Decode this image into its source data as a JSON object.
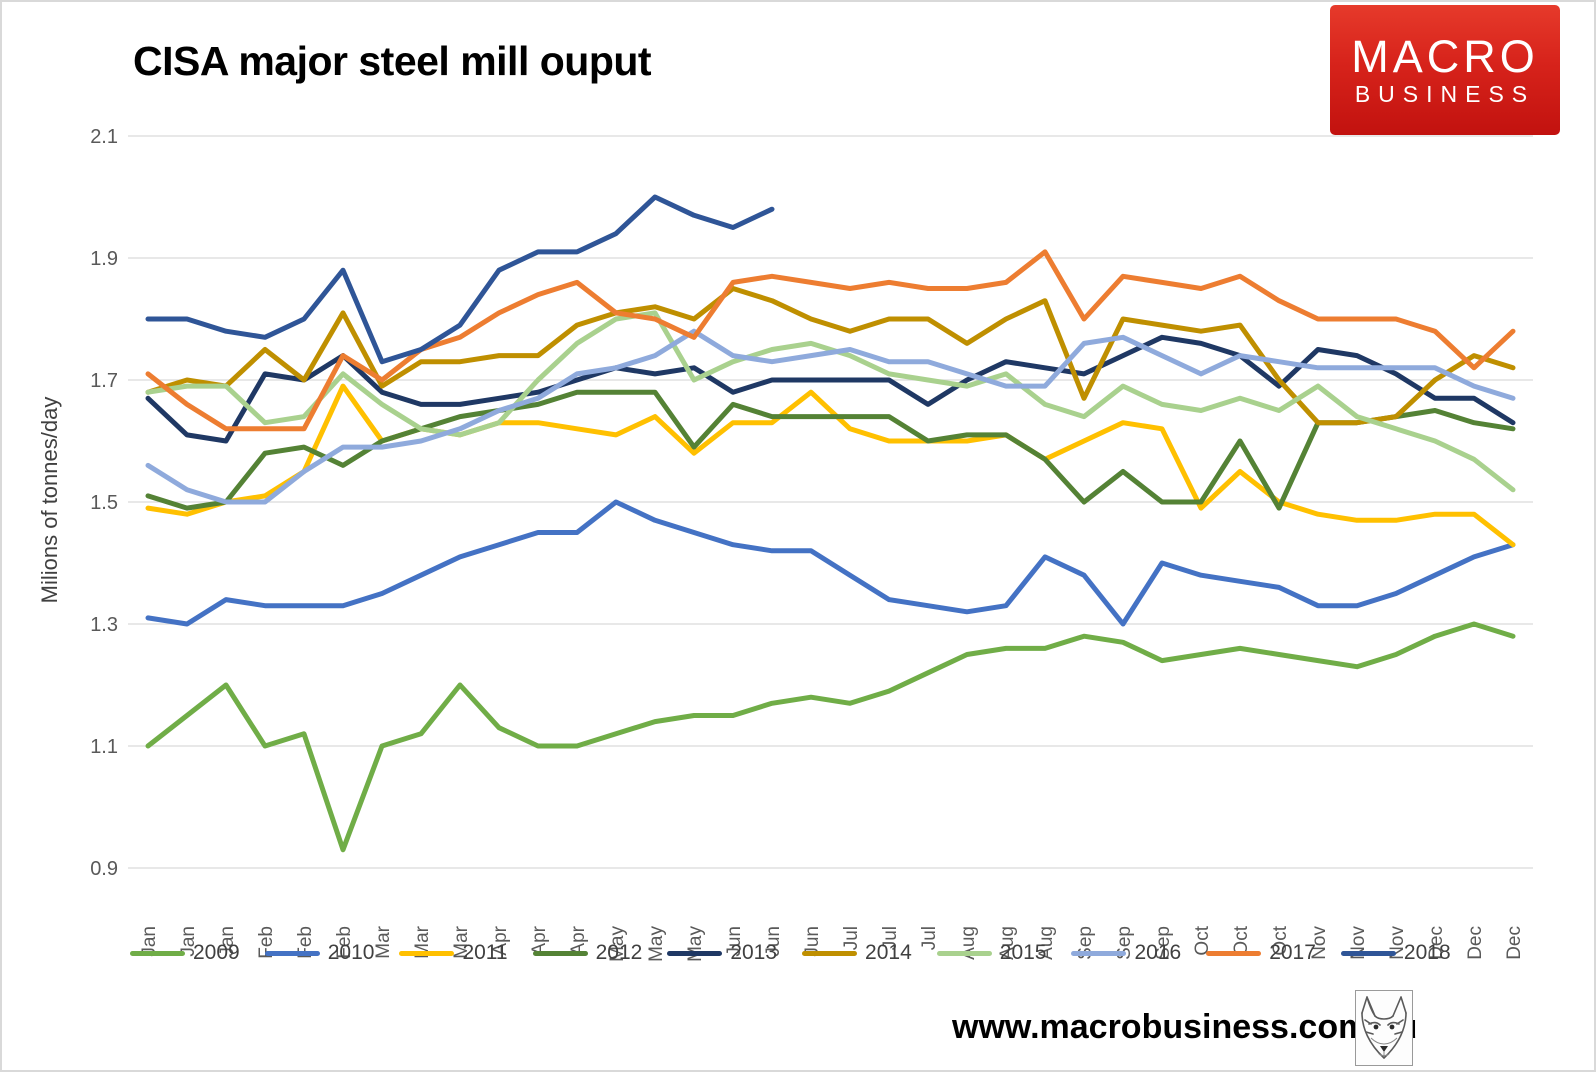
{
  "header": {
    "title": "CISA major steel mill ouput"
  },
  "logo": {
    "line1": "MACRO",
    "line2": "BUSINESS",
    "bg_color": "#d7231b",
    "text_color": "#ffffff"
  },
  "footer": {
    "website": "www.macrobusiness.com.au",
    "wolf_icon": "fox-sketch"
  },
  "chart_data": {
    "type": "line",
    "title": "CISA major steel mill ouput",
    "xlabel": "",
    "ylabel": "Milions of tonnes/day",
    "ylim": [
      0.9,
      2.1
    ],
    "yticks": [
      2.1,
      1.9,
      1.7,
      1.5,
      1.3,
      1.1,
      0.9
    ],
    "grid": true,
    "legend_position": "bottom",
    "gridline_color": "#d9d9d9",
    "tick_label_color": "#595959",
    "categories": [
      "Jan",
      "Jan",
      "Jan",
      "Feb",
      "Feb",
      "Feb",
      "Mar",
      "Mar",
      "Mar",
      "Apr",
      "Apr",
      "Apr",
      "May",
      "May",
      "May",
      "Jun",
      "Jun",
      "Jun",
      "Jul",
      "Jul",
      "Jul",
      "Aug",
      "Aug",
      "Aug",
      "Sep",
      "Sep",
      "Sep",
      "Oct",
      "Oct",
      "Oct",
      "Nov",
      "Nov",
      "Nov",
      "Dec",
      "Dec",
      "Dec"
    ],
    "series": [
      {
        "name": "2009",
        "color": "#70AD47",
        "values": [
          1.1,
          1.15,
          1.2,
          1.1,
          1.12,
          0.93,
          1.1,
          1.12,
          1.2,
          1.13,
          1.1,
          1.1,
          1.12,
          1.14,
          1.15,
          1.15,
          1.17,
          1.18,
          1.17,
          1.19,
          1.22,
          1.25,
          1.26,
          1.26,
          1.28,
          1.27,
          1.24,
          1.25,
          1.26,
          1.25,
          1.24,
          1.23,
          1.25,
          1.28,
          1.3,
          1.28
        ]
      },
      {
        "name": "2010",
        "color": "#4472C4",
        "values": [
          1.31,
          1.3,
          1.34,
          1.33,
          1.33,
          1.33,
          1.35,
          1.38,
          1.41,
          1.43,
          1.45,
          1.45,
          1.5,
          1.47,
          1.45,
          1.43,
          1.42,
          1.42,
          1.38,
          1.34,
          1.33,
          1.32,
          1.33,
          1.41,
          1.38,
          1.3,
          1.4,
          1.38,
          1.37,
          1.36,
          1.33,
          1.33,
          1.35,
          1.38,
          1.41,
          1.43
        ]
      },
      {
        "name": "2011",
        "color": "#FFC000",
        "values": [
          1.49,
          1.48,
          1.5,
          1.51,
          1.55,
          1.69,
          1.6,
          1.62,
          1.61,
          1.63,
          1.63,
          1.62,
          1.61,
          1.64,
          1.58,
          1.63,
          1.63,
          1.68,
          1.62,
          1.6,
          1.6,
          1.6,
          1.61,
          1.57,
          1.6,
          1.63,
          1.62,
          1.49,
          1.55,
          1.5,
          1.48,
          1.47,
          1.47,
          1.48,
          1.48,
          1.43
        ]
      },
      {
        "name": "2012",
        "color": "#548235",
        "values": [
          1.51,
          1.49,
          1.5,
          1.58,
          1.59,
          1.56,
          1.6,
          1.62,
          1.64,
          1.65,
          1.66,
          1.68,
          1.68,
          1.68,
          1.59,
          1.66,
          1.64,
          1.64,
          1.64,
          1.64,
          1.6,
          1.61,
          1.61,
          1.57,
          1.5,
          1.55,
          1.5,
          1.5,
          1.6,
          1.49,
          1.63,
          1.63,
          1.64,
          1.65,
          1.63,
          1.62
        ]
      },
      {
        "name": "2013",
        "color": "#1F3864",
        "values": [
          1.67,
          1.61,
          1.6,
          1.71,
          1.7,
          1.74,
          1.68,
          1.66,
          1.66,
          1.67,
          1.68,
          1.7,
          1.72,
          1.71,
          1.72,
          1.68,
          1.7,
          1.7,
          1.7,
          1.7,
          1.66,
          1.7,
          1.73,
          1.72,
          1.71,
          1.74,
          1.77,
          1.76,
          1.74,
          1.69,
          1.75,
          1.74,
          1.71,
          1.67,
          1.67,
          1.63
        ]
      },
      {
        "name": "2014",
        "color": "#BF8F00",
        "values": [
          1.68,
          1.7,
          1.69,
          1.75,
          1.7,
          1.81,
          1.69,
          1.73,
          1.73,
          1.74,
          1.74,
          1.79,
          1.81,
          1.82,
          1.8,
          1.85,
          1.83,
          1.8,
          1.78,
          1.8,
          1.8,
          1.76,
          1.8,
          1.83,
          1.67,
          1.8,
          1.79,
          1.78,
          1.79,
          1.7,
          1.63,
          1.63,
          1.64,
          1.7,
          1.74,
          1.72
        ]
      },
      {
        "name": "2015",
        "color": "#A9D18E",
        "values": [
          1.68,
          1.69,
          1.69,
          1.63,
          1.64,
          1.71,
          1.66,
          1.62,
          1.61,
          1.63,
          1.7,
          1.76,
          1.8,
          1.81,
          1.7,
          1.73,
          1.75,
          1.76,
          1.74,
          1.71,
          1.7,
          1.69,
          1.71,
          1.66,
          1.64,
          1.69,
          1.66,
          1.65,
          1.67,
          1.65,
          1.69,
          1.64,
          1.62,
          1.6,
          1.57,
          1.52
        ]
      },
      {
        "name": "2016",
        "color": "#8FAADC",
        "values": [
          1.56,
          1.52,
          1.5,
          1.5,
          1.55,
          1.59,
          1.59,
          1.6,
          1.62,
          1.65,
          1.67,
          1.71,
          1.72,
          1.74,
          1.78,
          1.74,
          1.73,
          1.74,
          1.75,
          1.73,
          1.73,
          1.71,
          1.69,
          1.69,
          1.76,
          1.77,
          1.74,
          1.71,
          1.74,
          1.73,
          1.72,
          1.72,
          1.72,
          1.72,
          1.69,
          1.67
        ]
      },
      {
        "name": "2017",
        "color": "#ED7D31",
        "values": [
          1.71,
          1.66,
          1.62,
          1.62,
          1.62,
          1.74,
          1.7,
          1.75,
          1.77,
          1.81,
          1.84,
          1.86,
          1.81,
          1.8,
          1.77,
          1.86,
          1.87,
          1.86,
          1.85,
          1.86,
          1.85,
          1.85,
          1.86,
          1.91,
          1.8,
          1.87,
          1.86,
          1.85,
          1.87,
          1.83,
          1.8,
          1.8,
          1.8,
          1.78,
          1.72,
          1.78
        ]
      },
      {
        "name": "2018",
        "color": "#2F5597",
        "values": [
          1.8,
          1.8,
          1.78,
          1.77,
          1.8,
          1.88,
          1.73,
          1.75,
          1.79,
          1.88,
          1.91,
          1.91,
          1.94,
          2.0,
          1.97,
          1.95,
          1.98
        ]
      }
    ]
  }
}
